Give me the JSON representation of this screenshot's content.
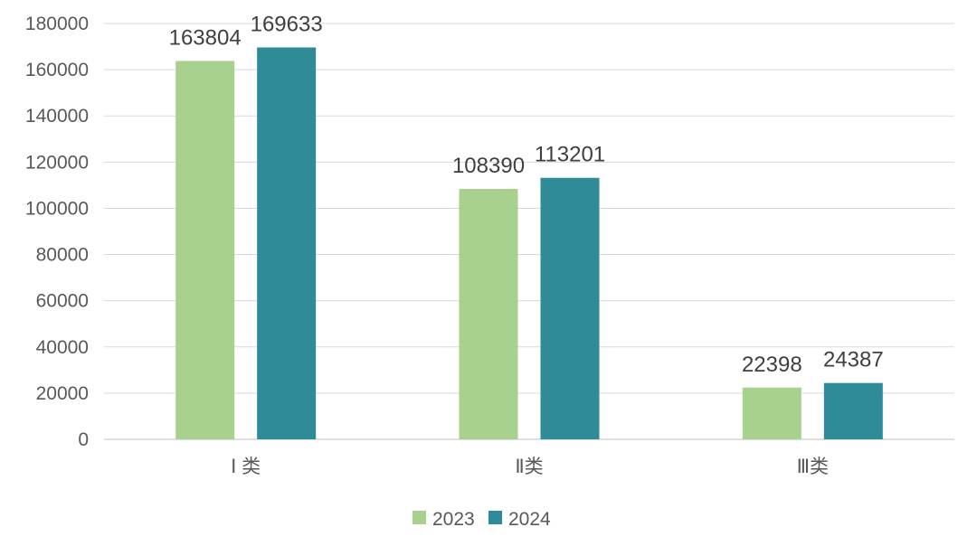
{
  "chart_data": {
    "type": "bar",
    "categories": [
      "Ⅰ 类",
      "Ⅱ类",
      "Ⅲ类"
    ],
    "series": [
      {
        "name": "2023",
        "values": [
          163804,
          108390,
          22398
        ]
      },
      {
        "name": "2024",
        "values": [
          169633,
          113201,
          24387
        ]
      }
    ],
    "ylim": [
      0,
      180000
    ],
    "yticks": [
      0,
      20000,
      40000,
      60000,
      80000,
      100000,
      120000,
      140000,
      160000,
      180000
    ],
    "grid": true,
    "legend_position": "bottom",
    "colors": {
      "2023": "#a9d18e",
      "2024": "#2e8b97"
    }
  }
}
